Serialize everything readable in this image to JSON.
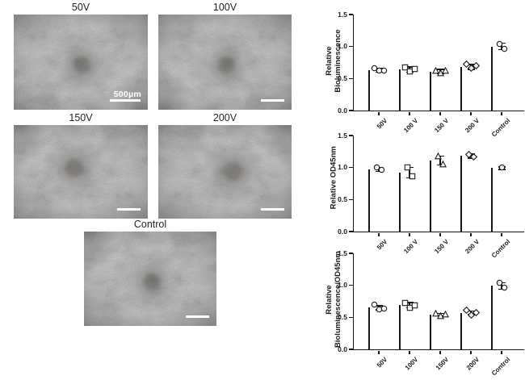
{
  "figure": {
    "micrographs": [
      {
        "label": "50V",
        "scale_label": "500µm"
      },
      {
        "label": "100V",
        "scale_label": ""
      },
      {
        "label": "150V",
        "scale_label": ""
      },
      {
        "label": "200V",
        "scale_label": ""
      },
      {
        "label": "Control",
        "scale_label": ""
      }
    ]
  },
  "chart_data": [
    {
      "type": "bar",
      "title": "",
      "ylabel_lines": [
        "Relative",
        "Bioluminescence"
      ],
      "categories": [
        "50V",
        "100 V",
        "150 V",
        "200 V",
        "Control"
      ],
      "values": [
        0.63,
        0.64,
        0.61,
        0.68,
        1.0
      ],
      "errors": [
        0.03,
        0.04,
        0.03,
        0.04,
        0.05
      ],
      "points": [
        [
          0.66,
          0.62,
          0.63
        ],
        [
          0.67,
          0.61,
          0.65
        ],
        [
          0.62,
          0.59,
          0.63
        ],
        [
          0.72,
          0.66,
          0.7
        ],
        [
          1.04,
          0.96
        ]
      ],
      "markers": [
        "circle",
        "square",
        "triangle",
        "diamond",
        "circle"
      ],
      "bar_colors": [
        "#cfdcf4",
        "#f7a2a2",
        "#fcf8d8",
        "#fbd9b0",
        "#d8f3d8"
      ],
      "ylim": [
        0,
        1.5
      ],
      "yticks": [
        "0.0",
        "0.5",
        "1.0",
        "1.5"
      ],
      "grid": false,
      "legend": null
    },
    {
      "type": "bar",
      "title": "",
      "ylabel_lines": [
        "Relative OD45nm"
      ],
      "categories": [
        "50V",
        "100 V",
        "150 V",
        "200 V",
        "Control"
      ],
      "values": [
        0.97,
        0.92,
        1.11,
        1.18,
        0.99
      ],
      "errors": [
        0.03,
        0.08,
        0.07,
        0.03,
        0.02
      ],
      "points": [
        [
          1.0,
          0.96
        ],
        [
          1.0,
          0.86
        ],
        [
          1.18,
          1.05
        ],
        [
          1.21,
          1.17
        ],
        [
          1.0
        ]
      ],
      "markers": [
        "circle",
        "square",
        "triangle",
        "diamond",
        "circle"
      ],
      "bar_colors": [
        "#cfdcf4",
        "#f7a2a2",
        "#fcf8d8",
        "#fbd9b0",
        "#d8f3d8"
      ],
      "ylim": [
        0,
        1.5
      ],
      "yticks": [
        "0.0",
        "0.5",
        "1.0",
        "1.5"
      ],
      "grid": false,
      "legend": null
    },
    {
      "type": "bar",
      "title": "",
      "ylabel_lines": [
        "Relative",
        "Bioluminescence/OD45nm"
      ],
      "categories": [
        "50V",
        "100V",
        "150V",
        "200V",
        "Control"
      ],
      "values": [
        0.65,
        0.69,
        0.54,
        0.57,
        0.99
      ],
      "errors": [
        0.03,
        0.04,
        0.02,
        0.03,
        0.05
      ],
      "points": [
        [
          0.7,
          0.63,
          0.64
        ],
        [
          0.73,
          0.65,
          0.69
        ],
        [
          0.56,
          0.52,
          0.55
        ],
        [
          0.61,
          0.53,
          0.57
        ],
        [
          1.04,
          0.96
        ]
      ],
      "markers": [
        "circle",
        "square",
        "triangle",
        "diamond",
        "circle"
      ],
      "bar_colors": [
        "#cfdcf4",
        "#f7a2a2",
        "#fcf8d8",
        "#fbd9b0",
        "#d8f3d8"
      ],
      "ylim": [
        0,
        1.5
      ],
      "yticks": [
        "0.0",
        "0.5",
        "1.0",
        "1.5"
      ],
      "grid": false,
      "legend": null
    }
  ]
}
